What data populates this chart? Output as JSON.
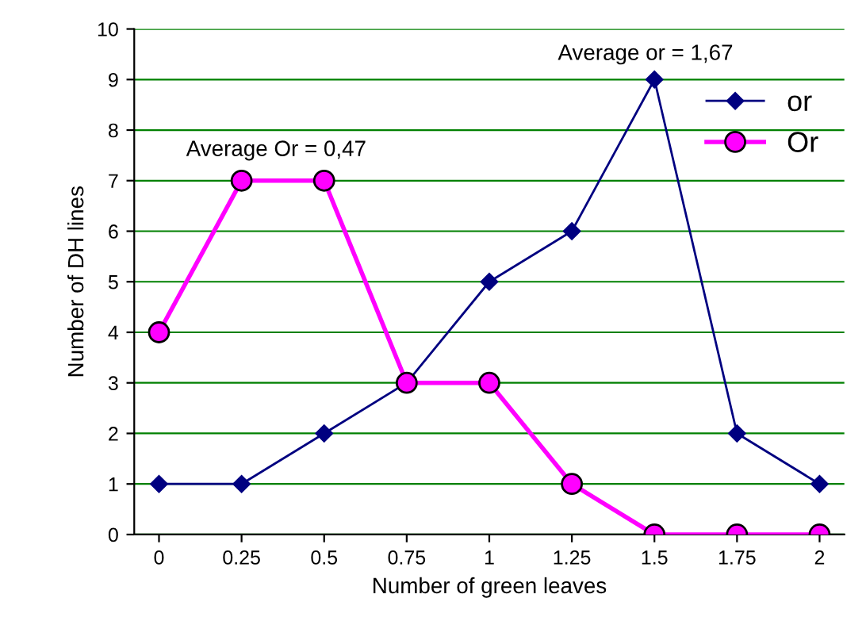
{
  "chart_data": {
    "type": "line",
    "xlabel": "Number of green leaves",
    "ylabel": "Number of DH lines",
    "categories": [
      "0",
      "0.25",
      "0.5",
      "0.75",
      "1",
      "1.25",
      "1.5",
      "1.75",
      "2"
    ],
    "series": [
      {
        "name": "or",
        "color": "#000080",
        "marker": "diamond",
        "values": [
          1,
          1,
          2,
          3,
          5,
          6,
          9,
          2,
          1
        ]
      },
      {
        "name": "Or",
        "color": "#ff00ff",
        "marker": "circle",
        "values": [
          4,
          7,
          7,
          3,
          3,
          1,
          0,
          0,
          0
        ]
      }
    ],
    "ylim": [
      0,
      10
    ],
    "yticks": [
      0,
      1,
      2,
      3,
      4,
      5,
      6,
      7,
      8,
      9,
      10
    ],
    "grid": "y",
    "legend": "top right",
    "annotations": [
      "Average or = 1,67",
      "Average Or = 0,47"
    ]
  }
}
